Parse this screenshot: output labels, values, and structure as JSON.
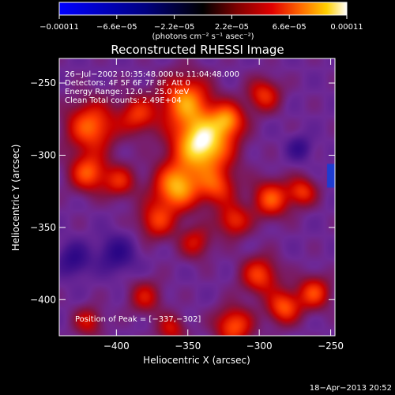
{
  "chart_data": {
    "type": "heatmap",
    "title": "Reconstructed RHESSI Image",
    "xlabel": "Heliocentric X (arcsec)",
    "ylabel": "Heliocentric Y (arcsec)",
    "xlim": [
      -440,
      -247
    ],
    "ylim": [
      -425,
      -233
    ],
    "x_ticks": [
      -400,
      -350,
      -300,
      -250
    ],
    "x_tick_labels": [
      "−400",
      "−350",
      "−300",
      "−250"
    ],
    "y_ticks": [
      -250,
      -300,
      -350,
      -400
    ],
    "y_tick_labels": [
      "−250",
      "−300",
      "−350",
      "−400"
    ],
    "colorbar": {
      "range": [
        -0.00011,
        0.00011
      ],
      "ticks": [
        -0.00011,
        -6.6e-05,
        -2.2e-05,
        2.2e-05,
        6.6e-05,
        0.00011
      ],
      "tick_labels": [
        "−0.00011",
        "−6.6e−05",
        "−2.2e−05",
        "2.2e−05",
        "6.6e−05",
        "0.00011"
      ],
      "unit_label": "(photons cm⁻² s⁻¹ asec⁻²)"
    },
    "annotations": [
      "26−Jul−2002 10:35:48.000 to 11:04:48.000",
      "Detectors: 4F 5F 6F 7F 8F, Att 0",
      "Energy Range: 12.0 − 25.0 keV",
      "Clean    Total counts: 2.49E+04"
    ],
    "peak_label": "Position of Peak = [−337,−302]",
    "peak": [
      -337,
      -302
    ],
    "sources": [
      {
        "x": -340,
        "y": -292,
        "sigma": 14,
        "amp": 1.0
      },
      {
        "x": -352,
        "y": -262,
        "sigma": 12,
        "amp": 0.65
      },
      {
        "x": -358,
        "y": -322,
        "sigma": 11,
        "amp": 0.75
      },
      {
        "x": -330,
        "y": -322,
        "sigma": 9,
        "amp": 0.45
      },
      {
        "x": -322,
        "y": -275,
        "sigma": 8,
        "amp": 0.55
      },
      {
        "x": -418,
        "y": -280,
        "sigma": 12,
        "amp": 0.6
      },
      {
        "x": -385,
        "y": -272,
        "sigma": 9,
        "amp": 0.45
      },
      {
        "x": -420,
        "y": -312,
        "sigma": 9,
        "amp": 0.55
      },
      {
        "x": -398,
        "y": -318,
        "sigma": 8,
        "amp": 0.4
      },
      {
        "x": -297,
        "y": -258,
        "sigma": 8,
        "amp": 0.45
      },
      {
        "x": -292,
        "y": -330,
        "sigma": 9,
        "amp": 0.55
      },
      {
        "x": -270,
        "y": -325,
        "sigma": 7,
        "amp": 0.45
      },
      {
        "x": -318,
        "y": -345,
        "sigma": 8,
        "amp": 0.45
      },
      {
        "x": -372,
        "y": -345,
        "sigma": 9,
        "amp": 0.45
      },
      {
        "x": -345,
        "y": -360,
        "sigma": 8,
        "amp": 0.35
      },
      {
        "x": -300,
        "y": -383,
        "sigma": 9,
        "amp": 0.5
      },
      {
        "x": -318,
        "y": -418,
        "sigma": 9,
        "amp": 0.55
      },
      {
        "x": -283,
        "y": -405,
        "sigma": 8,
        "amp": 0.55
      },
      {
        "x": -262,
        "y": -395,
        "sigma": 8,
        "amp": 0.5
      },
      {
        "x": -380,
        "y": -398,
        "sigma": 8,
        "amp": 0.35
      },
      {
        "x": -362,
        "y": -420,
        "sigma": 7,
        "amp": 0.35
      },
      {
        "x": -420,
        "y": -415,
        "sigma": 7,
        "amp": 0.35
      },
      {
        "x": -400,
        "y": -368,
        "sigma": 9,
        "amp": -0.3
      },
      {
        "x": -430,
        "y": -372,
        "sigma": 8,
        "amp": -0.3
      },
      {
        "x": -272,
        "y": -295,
        "sigma": 6,
        "amp": -0.25
      }
    ]
  },
  "footer": {
    "timestamp": "18−Apr−2013 20:52"
  }
}
